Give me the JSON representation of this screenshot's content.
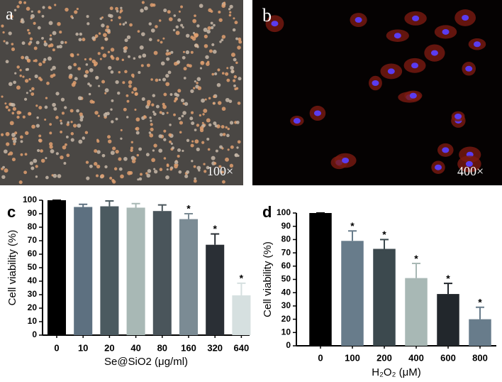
{
  "images": [
    {
      "label": "a",
      "magnification": "100×"
    },
    {
      "label": "b",
      "magnification": "400×"
    }
  ],
  "chart_data": [
    {
      "type": "bar",
      "label": "c",
      "ylabel": "Cell viability (%)",
      "xlabel": "Se@SiO2 (μg/ml)",
      "categories": [
        "0",
        "10",
        "20",
        "40",
        "80",
        "160",
        "320",
        "640"
      ],
      "values": [
        100,
        95,
        95.5,
        94.5,
        92,
        86,
        67,
        29.5
      ],
      "errors": [
        0,
        2,
        4,
        3,
        4.5,
        4,
        8,
        9
      ],
      "significance": [
        null,
        null,
        null,
        null,
        null,
        "*",
        "*",
        "*"
      ],
      "colors": [
        "#000000",
        "#5d7080",
        "#4b5a60",
        "#a8b8b5",
        "#4a555b",
        "#7b8b94",
        "#2a2f35",
        "#d6e0e0"
      ],
      "ylim": [
        0,
        100
      ],
      "yticks": [
        0,
        10,
        20,
        30,
        40,
        50,
        60,
        70,
        80,
        90,
        100
      ]
    },
    {
      "type": "bar",
      "label": "d",
      "ylabel": "Cell viability (%)",
      "xlabel": "H₂O₂ (μM)",
      "categories": [
        "0",
        "100",
        "200",
        "400",
        "600",
        "800"
      ],
      "values": [
        100,
        79,
        73,
        51,
        39,
        20
      ],
      "errors": [
        0,
        7.5,
        7,
        11,
        8,
        9
      ],
      "significance": [
        null,
        "*",
        "*",
        "*",
        "*",
        "*"
      ],
      "colors": [
        "#000000",
        "#687c8b",
        "#3c494e",
        "#a8b8b5",
        "#22272c",
        "#687c8b"
      ],
      "ylim": [
        0,
        100
      ],
      "yticks": [
        0,
        10,
        20,
        30,
        40,
        50,
        60,
        70,
        80,
        90,
        100
      ]
    }
  ]
}
